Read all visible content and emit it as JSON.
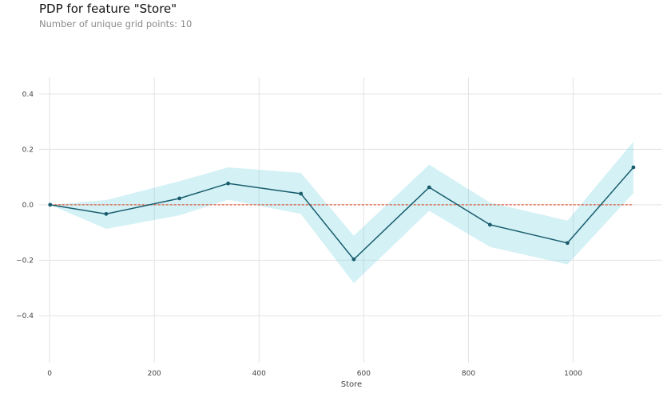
{
  "header": {
    "title": "PDP for feature \"Store\"",
    "subtitle": "Number of unique grid points: 10"
  },
  "chart_data": {
    "type": "line",
    "title": "PDP for feature \"Store\"",
    "subtitle": "Number of unique grid points: 10",
    "xlabel": "Store",
    "ylabel": "",
    "xlim": [
      -20,
      1170
    ],
    "ylim": [
      -0.57,
      0.46
    ],
    "xticks": [
      0,
      200,
      400,
      600,
      800,
      1000
    ],
    "yticks": [
      -0.4,
      -0.2,
      0.0,
      0.2,
      0.4
    ],
    "xtick_labels": [
      "0",
      "200",
      "400",
      "600",
      "800",
      "1000"
    ],
    "ytick_labels": [
      "−0.4",
      "−0.2",
      "0.0",
      "0.2",
      "0.4"
    ],
    "grid": true,
    "series": [
      {
        "type": "line",
        "x": [
          1,
          108,
          248,
          341,
          480,
          581,
          725,
          841,
          989,
          1115
        ],
        "y": [
          0.0,
          -0.033,
          0.023,
          0.077,
          0.04,
          -0.197,
          0.063,
          -0.072,
          -0.138,
          0.135
        ],
        "color": "#1a5e6e"
      },
      {
        "type": "band",
        "x": [
          1,
          108,
          248,
          341,
          480,
          581,
          725,
          841,
          989,
          1115
        ],
        "upper": [
          0.0,
          0.017,
          0.085,
          0.135,
          0.115,
          -0.112,
          0.145,
          0.008,
          -0.057,
          0.228
        ],
        "lower": [
          0.0,
          -0.087,
          -0.038,
          0.018,
          -0.033,
          -0.283,
          -0.022,
          -0.152,
          -0.215,
          0.042
        ],
        "color": "#66ccdd"
      },
      {
        "type": "reference",
        "y": 0.0,
        "x": [
          1,
          1115
        ],
        "color": "#e0593a",
        "style": "dashed"
      }
    ]
  }
}
